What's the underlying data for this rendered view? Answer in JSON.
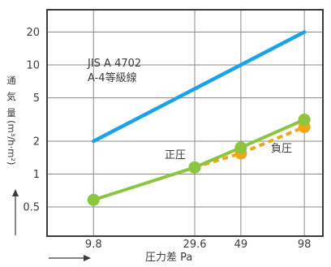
{
  "chart_data": {
    "type": "line",
    "x_scale": "log",
    "y_scale": "log",
    "x_ticks": [
      9.8,
      29.6,
      49,
      98
    ],
    "x_tick_labels": [
      "9.8",
      "29.6",
      "49",
      "98"
    ],
    "y_ticks": [
      0.5,
      1,
      2,
      5,
      10,
      20
    ],
    "y_tick_labels": [
      "0.5",
      "1",
      "2",
      "5",
      "10",
      "20"
    ],
    "xlim": [
      5.9,
      120
    ],
    "ylim": [
      0.27,
      32
    ],
    "grid": true,
    "xlabel": "圧力差 Pa",
    "ylabel_chars": [
      "通",
      "気",
      "量"
    ],
    "ylabel_unit": "(m³/h·m²)",
    "series": [
      {
        "name": "JIS A 4702 A-4等級線",
        "color": "#1aa3e8",
        "style": "solid",
        "markers": false,
        "x": [
          9.8,
          98
        ],
        "y": [
          2,
          20
        ]
      },
      {
        "name": "負圧",
        "color": "#f2a516",
        "style": "dashed",
        "markers": true,
        "x": [
          29.6,
          49,
          98
        ],
        "y": [
          1.15,
          1.55,
          2.7
        ]
      },
      {
        "name": "正圧",
        "color": "#8cc63f",
        "style": "solid",
        "markers": true,
        "x": [
          9.8,
          29.6,
          49,
          98
        ],
        "y": [
          0.58,
          1.15,
          1.75,
          3.15
        ]
      }
    ],
    "annotations": {
      "jis_line1": "JIS A 4702",
      "jis_line2": "A-4等級線",
      "positive": "正圧",
      "negative": "負圧"
    }
  }
}
